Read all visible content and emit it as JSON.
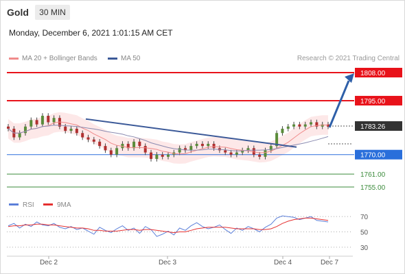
{
  "header": {
    "symbol": "Gold",
    "timeframe": "30 MIN",
    "date": "Monday, December 6, 2021 1:01:15 AM CET"
  },
  "legend": {
    "ma20": "MA 20 + Bollinger Bands",
    "ma50": "MA 50",
    "credit": "Research © 2021 Trading Central"
  },
  "colors": {
    "resistance": "#e8121a",
    "support": "#2a6fdb",
    "target": "#3a8a3a",
    "current": "#333333",
    "ma20": "#f08a8a",
    "ma50": "#8a8ab0",
    "trend": "#3b5998",
    "arrow": "#2e5fa8",
    "band": "#fbd9d9",
    "rsi": "#5b7fd9",
    "ma9": "#e53030"
  },
  "chart_data": [
    {
      "type": "candlestick",
      "x_labels": [
        "Dec 2",
        "Dec 3",
        "Dec 4",
        "Dec 7"
      ],
      "levels": [
        {
          "label": "1808.00",
          "value": 1808.0,
          "kind": "resistance"
        },
        {
          "label": "1795.00",
          "value": 1795.0,
          "kind": "resistance"
        },
        {
          "label": "1783.26",
          "value": 1783.26,
          "kind": "current"
        },
        {
          "label": "1770.00",
          "value": 1770.0,
          "kind": "support"
        },
        {
          "label": "1761.00",
          "value": 1761.0,
          "kind": "target"
        },
        {
          "label": "1755.00",
          "value": 1755.0,
          "kind": "target"
        }
      ],
      "price_range": [
        1755,
        1808
      ],
      "closes": [
        1782,
        1778,
        1780,
        1783,
        1786,
        1784,
        1788,
        1785,
        1787,
        1783,
        1781,
        1782,
        1780,
        1778,
        1777,
        1776,
        1774,
        1772,
        1770,
        1773,
        1775,
        1773,
        1776,
        1774,
        1771,
        1768,
        1770,
        1769,
        1770,
        1771,
        1773,
        1772,
        1774,
        1775,
        1774,
        1775,
        1773,
        1772,
        1771,
        1770,
        1771,
        1772,
        1773,
        1770,
        1769,
        1772,
        1774,
        1780,
        1782,
        1783,
        1784,
        1783,
        1784,
        1785,
        1783,
        1784,
        1783
      ],
      "legend": [
        "MA 20 + Bollinger Bands",
        "MA 50"
      ]
    },
    {
      "type": "line",
      "y_ticks": [
        70,
        50,
        30
      ],
      "y_range": [
        20,
        80
      ],
      "series": [
        {
          "name": "RSI",
          "values": [
            58,
            61,
            55,
            60,
            57,
            63,
            59,
            58,
            61,
            56,
            54,
            57,
            53,
            55,
            51,
            47,
            56,
            52,
            49,
            54,
            58,
            52,
            55,
            48,
            57,
            53,
            44,
            47,
            51,
            46,
            55,
            52,
            58,
            62,
            57,
            54,
            56,
            59,
            53,
            48,
            55,
            52,
            57,
            54,
            50,
            56,
            60,
            68,
            71,
            70,
            69,
            66,
            68,
            70,
            65,
            64,
            63
          ]
        },
        {
          "name": "9MA",
          "values": [
            57,
            58,
            58,
            59,
            59,
            60,
            60,
            59,
            59,
            58,
            57,
            56,
            55,
            55,
            54,
            52,
            52,
            51,
            51,
            51,
            52,
            53,
            53,
            52,
            53,
            53,
            52,
            51,
            50,
            49,
            50,
            50,
            52,
            54,
            55,
            56,
            56,
            56,
            56,
            55,
            54,
            54,
            54,
            54,
            53,
            53,
            54,
            57,
            61,
            64,
            66,
            67,
            68,
            68,
            67,
            66,
            65
          ]
        }
      ],
      "legend": [
        "RSI",
        "9MA"
      ]
    }
  ]
}
